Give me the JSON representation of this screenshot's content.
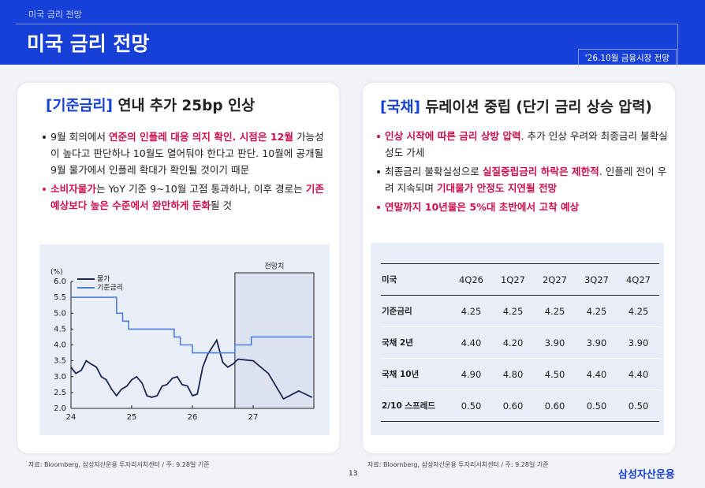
{
  "header": {
    "breadcrumb": "미국 금리 전망",
    "title": "미국 금리 전망",
    "badge": "'26.10월 금융시장 전망"
  },
  "left": {
    "tag": "[기준금리]",
    "title": " 연내 추가 25bp 인상",
    "bullets": [
      {
        "em": false,
        "segments": [
          {
            "text": "9월 회의에서 ",
            "em": false
          },
          {
            "text": "연준의 인플레 대응 의지 확인. 시점은 12월",
            "em": true
          },
          {
            "text": " 가능성이 높다고 판단하나 10월도 열어둬야 한다고 판단. 10월에 공개될 9월 물가에서 인플레 확대가 확인될 것이기 때문",
            "em": false
          }
        ]
      },
      {
        "em": true,
        "segments": [
          {
            "text": "소비자물가",
            "em": true
          },
          {
            "text": "는 YoY 기준 9~10월 고점 통과하나, 이후 경로는 ",
            "em": false
          },
          {
            "text": "기존 예상보다 높은 수준에서 완만하게 둔화",
            "em": true
          },
          {
            "text": "될 것",
            "em": false
          }
        ]
      }
    ],
    "source": "자료: Bloomberg, 삼성자산운용 투자리서치센터 / 주: 9.28일 기준"
  },
  "chart_data": {
    "type": "line",
    "y_label": "(%)",
    "forecast_label": "전망치",
    "forecast_start": 26.7,
    "xlim": [
      24,
      28
    ],
    "xticks": [
      24,
      25,
      26,
      27
    ],
    "ylim": [
      2.0,
      6.0
    ],
    "yticks": [
      {
        "value": 2.0,
        "label": "2.0"
      },
      {
        "value": 2.5,
        "label": "2.5"
      },
      {
        "value": 3.0,
        "label": "3.0"
      },
      {
        "value": 3.5,
        "label": "3.5"
      },
      {
        "value": 4.0,
        "label": "4.0"
      },
      {
        "value": 4.5,
        "label": "4.5"
      },
      {
        "value": 5.0,
        "label": "5.0"
      },
      {
        "value": 5.5,
        "label": "5.5"
      },
      {
        "value": 6.0,
        "label": "6.0"
      }
    ],
    "series": [
      {
        "name": "물가",
        "color": "#1c2757",
        "x": [
          24.0,
          24.08,
          24.17,
          24.25,
          24.33,
          24.42,
          24.5,
          24.58,
          24.67,
          24.75,
          24.83,
          24.92,
          25.0,
          25.08,
          25.17,
          25.25,
          25.33,
          25.42,
          25.5,
          25.58,
          25.67,
          25.75,
          25.83,
          25.92,
          26.0,
          26.08,
          26.17,
          26.25,
          26.4,
          26.5,
          26.58,
          26.67,
          26.75,
          27.0,
          27.25,
          27.5,
          27.75,
          27.97
        ],
        "values": [
          3.3,
          3.1,
          3.2,
          3.5,
          3.4,
          3.3,
          3.0,
          2.9,
          2.6,
          2.4,
          2.6,
          2.7,
          2.9,
          3.0,
          2.8,
          2.4,
          2.35,
          2.4,
          2.7,
          2.75,
          2.95,
          3.0,
          2.75,
          2.7,
          2.4,
          2.45,
          3.3,
          3.7,
          4.15,
          3.45,
          3.3,
          3.4,
          3.55,
          3.5,
          3.1,
          2.3,
          2.55,
          2.35
        ]
      },
      {
        "name": "기준금리",
        "color": "#4a7fdb",
        "x": [
          24.0,
          24.75,
          24.75,
          24.85,
          24.85,
          24.95,
          24.95,
          25.7,
          25.7,
          25.8,
          25.8,
          26.0,
          26.0,
          26.7,
          26.7,
          26.97,
          26.97,
          27.97
        ],
        "values": [
          5.5,
          5.5,
          5.0,
          5.0,
          4.75,
          4.75,
          4.5,
          4.5,
          4.25,
          4.25,
          4.0,
          4.0,
          3.75,
          3.75,
          4.0,
          4.0,
          4.25,
          4.25
        ]
      }
    ]
  },
  "right": {
    "tag": "[국채]",
    "title": " 듀레이션 중립 (단기 금리 상승 압력)",
    "bullets": [
      {
        "em": true,
        "segments": [
          {
            "text": "인상 시작에 따른 금리 상방 압력",
            "em": true
          },
          {
            "text": ". 추가 인상 우려와 최종금리 불확실성도 가세",
            "em": false
          }
        ]
      },
      {
        "em": false,
        "segments": [
          {
            "text": "최종금리 불확실성으로 ",
            "em": false
          },
          {
            "text": "실질중립금리 하락은 제한적",
            "em": true
          },
          {
            "text": ". 인플레 전이 우려 지속되며 ",
            "em": false
          },
          {
            "text": "기대물가 안정도 지연될 전망",
            "em": true
          }
        ]
      },
      {
        "em": true,
        "segments": [
          {
            "text": "연말까지 10년물은 5%대 초반에서 고착 예상",
            "em": true
          }
        ]
      }
    ],
    "source": "자료: Bloomberg, 삼성자산운용 투자리서치센터 / 주: 9.28일 기준"
  },
  "table": {
    "header": [
      "미국",
      "4Q26",
      "1Q27",
      "2Q27",
      "3Q27",
      "4Q27"
    ],
    "rows": [
      [
        "기준금리",
        "4.25",
        "4.25",
        "4.25",
        "4.25",
        "4.25"
      ],
      [
        "국채 2년",
        "4.40",
        "4.20",
        "3.90",
        "3.90",
        "3.90"
      ],
      [
        "국채 10년",
        "4.90",
        "4.80",
        "4.50",
        "4.40",
        "4.40"
      ],
      [
        "2/10 스프레드",
        "0.50",
        "0.60",
        "0.60",
        "0.50",
        "0.50"
      ]
    ]
  },
  "footer": {
    "page": "13",
    "logo": "삼성자산운용"
  }
}
